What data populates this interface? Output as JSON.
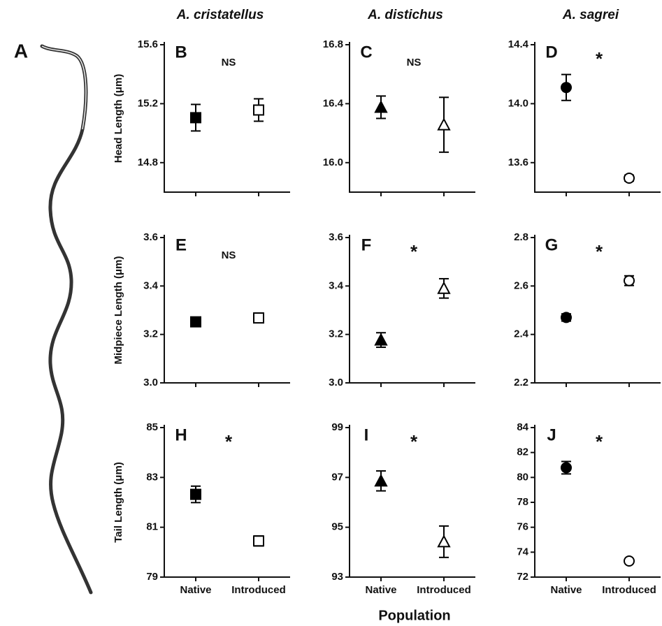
{
  "panel_label": "A",
  "xlabel": "Population",
  "categories": [
    "Native",
    "Introduced"
  ],
  "chart_data": [
    {
      "type": "errorbar",
      "title": "A. cristatellus",
      "ylabel": "Head Length (μm)",
      "label": "B",
      "annotation": "NS",
      "marker": "square",
      "colors": [
        "#000000",
        "#ffffff"
      ],
      "values": [
        15.105,
        15.157
      ],
      "errors": [
        0.09,
        0.076
      ],
      "ylim": [
        14.6,
        15.6
      ],
      "yticks": [
        14.8,
        15.2,
        15.6
      ]
    },
    {
      "type": "errorbar",
      "title": "A. distichus",
      "label": "C",
      "annotation": "NS",
      "marker": "triangle",
      "colors": [
        "#000000",
        "#ffffff"
      ],
      "values": [
        16.376,
        16.257
      ],
      "errors": [
        0.076,
        0.186
      ],
      "ylim": [
        15.8,
        16.8
      ],
      "yticks": [
        {
          "value": 16,
          "label": "16.0"
        },
        16.4,
        16.8
      ]
    },
    {
      "type": "errorbar",
      "title": "A. sagrei",
      "label": "D",
      "annotation": "*",
      "marker": "circle",
      "colors": [
        "#000000",
        "#ffffff"
      ],
      "values": [
        14.11,
        13.495
      ],
      "errors": [
        0.088,
        0.02
      ],
      "ylim": [
        13.4,
        14.4
      ],
      "yticks": [
        13.6,
        {
          "value": 14,
          "label": "14.0"
        },
        14.4
      ]
    },
    {
      "type": "errorbar",
      "ylabel": "Midpiece Length (μm)",
      "label": "E",
      "annotation": "NS",
      "marker": "square",
      "colors": [
        "#000000",
        "#ffffff"
      ],
      "values": [
        3.252,
        3.268
      ],
      "errors": [
        0.01,
        0.02
      ],
      "ylim": [
        3.0,
        3.6
      ],
      "yticks": [
        {
          "value": 3,
          "label": "3.0"
        },
        3.2,
        3.4,
        3.6
      ]
    },
    {
      "type": "errorbar",
      "label": "F",
      "annotation": "*",
      "marker": "triangle",
      "colors": [
        "#000000",
        "#ffffff"
      ],
      "values": [
        3.177,
        3.39
      ],
      "errors": [
        0.03,
        0.04
      ],
      "ylim": [
        3.0,
        3.6
      ],
      "yticks": [
        {
          "value": 3,
          "label": "3.0"
        },
        3.2,
        3.4,
        3.6
      ]
    },
    {
      "type": "errorbar",
      "label": "G",
      "annotation": "*",
      "marker": "circle",
      "colors": [
        "#000000",
        "#ffffff"
      ],
      "values": [
        2.47,
        2.622
      ],
      "errors": [
        0.015,
        0.02
      ],
      "ylim": [
        2.2,
        2.8
      ],
      "yticks": [
        2.2,
        2.4,
        2.6,
        2.8
      ]
    },
    {
      "type": "errorbar",
      "ylabel": "Tail Length (μm)",
      "label": "H",
      "annotation": "*",
      "marker": "square",
      "colors": [
        "#000000",
        "#ffffff"
      ],
      "values": [
        82.32,
        80.45
      ],
      "errors": [
        0.33,
        0.2
      ],
      "ylim": [
        79,
        85
      ],
      "yticks": [
        79,
        81,
        83,
        85
      ]
    },
    {
      "type": "errorbar",
      "label": "I",
      "annotation": "*",
      "marker": "triangle",
      "colors": [
        "#000000",
        "#ffffff"
      ],
      "values": [
        96.86,
        94.42
      ],
      "errors": [
        0.4,
        0.63
      ],
      "ylim": [
        93,
        99
      ],
      "yticks": [
        93,
        95,
        97,
        99
      ]
    },
    {
      "type": "errorbar",
      "label": "J",
      "annotation": "*",
      "marker": "circle",
      "colors": [
        "#000000",
        "#ffffff"
      ],
      "values": [
        80.78,
        73.29
      ],
      "errors": [
        0.5,
        0.15
      ],
      "ylim": [
        72,
        84
      ],
      "yticks": [
        72,
        74,
        76,
        78,
        80,
        82,
        84
      ]
    }
  ]
}
